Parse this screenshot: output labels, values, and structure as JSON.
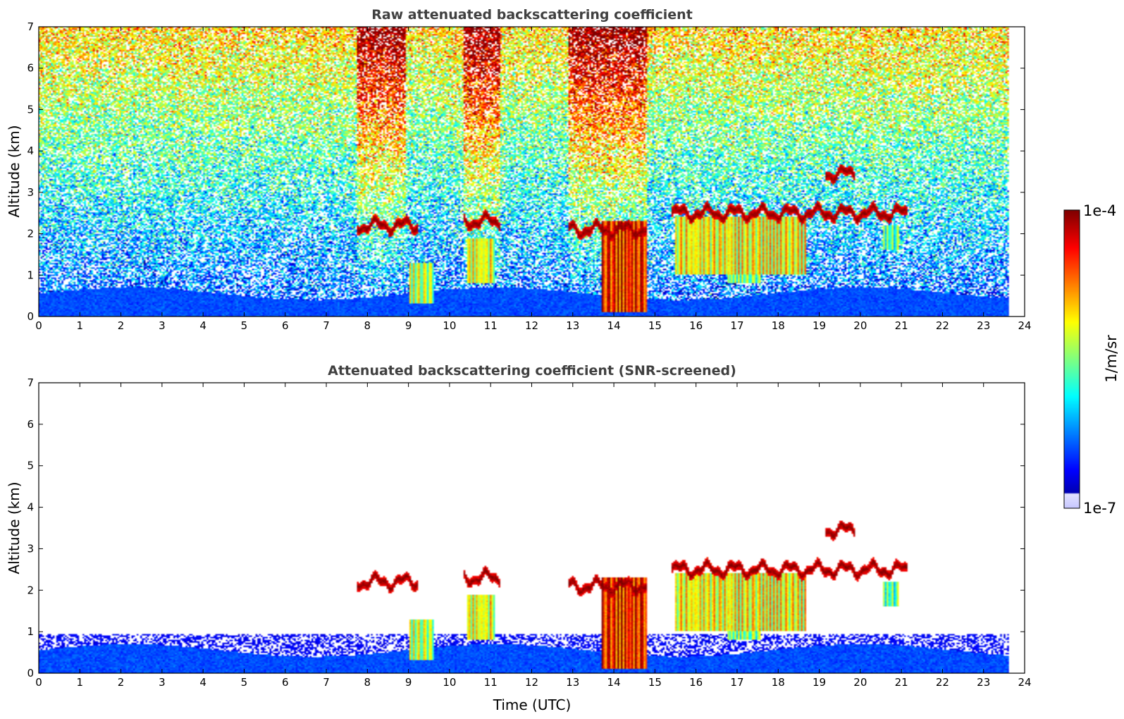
{
  "chart_data": [
    {
      "type": "heatmap",
      "title": "Raw attenuated backscattering coefficient",
      "xlabel": "",
      "ylabel": "Altitude (km)",
      "xlim": [
        0,
        24
      ],
      "ylim": [
        0,
        7
      ],
      "xticks": [
        "0",
        "1",
        "2",
        "3",
        "4",
        "5",
        "6",
        "7",
        "8",
        "9",
        "10",
        "11",
        "12",
        "13",
        "14",
        "15",
        "16",
        "17",
        "18",
        "19",
        "20",
        "21",
        "22",
        "23",
        "24"
      ],
      "yticks": [
        "0",
        "1",
        "2",
        "3",
        "4",
        "5",
        "6",
        "7"
      ],
      "data_end_time": 23.8,
      "features": [
        {
          "kind": "boundary-layer",
          "t0": 0,
          "t1": 23.8,
          "alt0": 0,
          "alt1": 0.6,
          "level": 0.22
        },
        {
          "kind": "cloud-layer",
          "t0": 7.8,
          "t1": 9.3,
          "alt": 2.2,
          "level": 1.0
        },
        {
          "kind": "cloud-layer",
          "t0": 10.4,
          "t1": 11.3,
          "alt": 2.3,
          "level": 1.0
        },
        {
          "kind": "cloud-layer",
          "t0": 13.0,
          "t1": 14.9,
          "alt": 2.1,
          "level": 1.0
        },
        {
          "kind": "cloud-layer",
          "t0": 15.5,
          "t1": 21.3,
          "alt": 2.5,
          "level": 1.0
        },
        {
          "kind": "cloud-layer",
          "t0": 19.3,
          "t1": 20.0,
          "alt": 3.45,
          "level": 1.0
        },
        {
          "kind": "precipitation",
          "t0": 9.1,
          "t1": 9.7,
          "alt0": 0.3,
          "alt1": 1.3,
          "level": 0.55
        },
        {
          "kind": "precipitation",
          "t0": 10.5,
          "t1": 11.2,
          "alt0": 0.8,
          "alt1": 1.9,
          "level": 0.6
        },
        {
          "kind": "precipitation",
          "t0": 13.8,
          "t1": 14.9,
          "alt0": 0.1,
          "alt1": 2.3,
          "level": 0.85
        },
        {
          "kind": "precipitation",
          "t0": 15.6,
          "t1": 18.8,
          "alt0": 1.0,
          "alt1": 2.4,
          "level": 0.62
        },
        {
          "kind": "precipitation",
          "t0": 16.9,
          "t1": 17.7,
          "alt0": 0.8,
          "alt1": 1.6,
          "level": 0.5
        },
        {
          "kind": "precipitation",
          "t0": 20.7,
          "t1": 21.1,
          "alt0": 1.6,
          "alt1": 2.2,
          "level": 0.45
        }
      ]
    },
    {
      "type": "heatmap",
      "title": "Attenuated backscattering coefficient (SNR-screened)",
      "xlabel": "Time (UTC)",
      "ylabel": "Altitude (km)",
      "xlim": [
        0,
        24
      ],
      "ylim": [
        0,
        7
      ],
      "xticks": [
        "0",
        "1",
        "2",
        "3",
        "4",
        "5",
        "6",
        "7",
        "8",
        "9",
        "10",
        "11",
        "12",
        "13",
        "14",
        "15",
        "16",
        "17",
        "18",
        "19",
        "20",
        "21",
        "22",
        "23",
        "24"
      ],
      "yticks": [
        "0",
        "1",
        "2",
        "3",
        "4",
        "5",
        "6",
        "7"
      ],
      "data_end_time": 23.8,
      "screened_noise": true
    }
  ],
  "colorbar": {
    "label": "1/m/sr",
    "max_label": "1e-4",
    "min_label": "1e-7",
    "colormap": "jet"
  }
}
